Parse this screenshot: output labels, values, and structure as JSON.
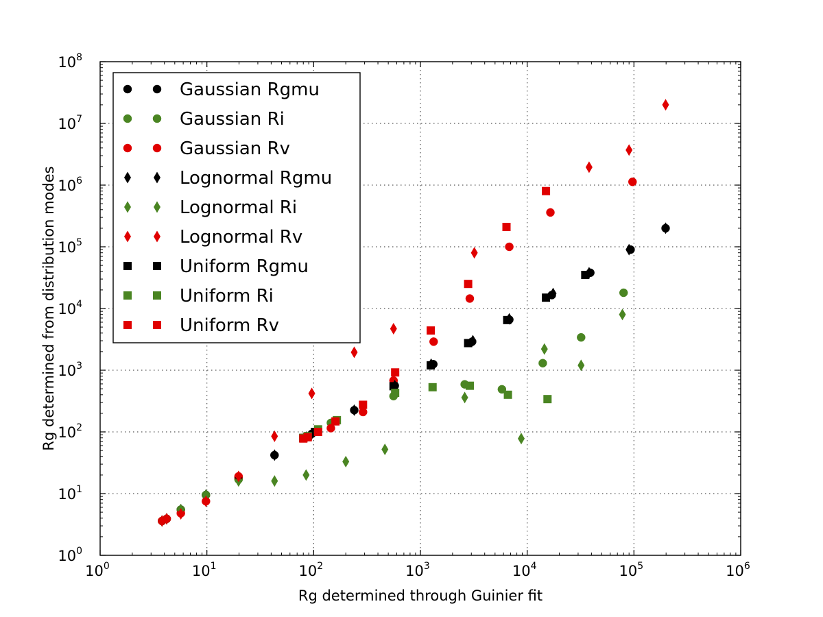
{
  "chart_data": {
    "type": "scatter",
    "xlabel": "Rg determined through Guinier fit",
    "ylabel": "Rg determined from distribution modes",
    "xscale": "log",
    "yscale": "log",
    "xlim": [
      1,
      1000000
    ],
    "ylim": [
      1,
      100000000
    ],
    "x_ticks": [
      {
        "value": 1,
        "base": "10",
        "exp": "0"
      },
      {
        "value": 10,
        "base": "10",
        "exp": "1"
      },
      {
        "value": 100,
        "base": "10",
        "exp": "2"
      },
      {
        "value": 1000,
        "base": "10",
        "exp": "3"
      },
      {
        "value": 10000,
        "base": "10",
        "exp": "4"
      },
      {
        "value": 100000,
        "base": "10",
        "exp": "5"
      },
      {
        "value": 1000000,
        "base": "10",
        "exp": "6"
      }
    ],
    "y_ticks": [
      {
        "value": 1,
        "base": "10",
        "exp": "0"
      },
      {
        "value": 10,
        "base": "10",
        "exp": "1"
      },
      {
        "value": 100,
        "base": "10",
        "exp": "2"
      },
      {
        "value": 1000,
        "base": "10",
        "exp": "3"
      },
      {
        "value": 10000,
        "base": "10",
        "exp": "4"
      },
      {
        "value": 100000,
        "base": "10",
        "exp": "5"
      },
      {
        "value": 1000000,
        "base": "10",
        "exp": "6"
      },
      {
        "value": 10000000,
        "base": "10",
        "exp": "7"
      },
      {
        "value": 100000000,
        "base": "10",
        "exp": "8"
      }
    ],
    "grid": true,
    "legend_position": "top-left",
    "series": [
      {
        "name": "Gaussian Rgmu",
        "marker": "circle",
        "color": "#000000",
        "points": [
          [
            3.8,
            3.6
          ],
          [
            4.2,
            3.9
          ],
          [
            5.7,
            5.5
          ],
          [
            9.8,
            9.5
          ],
          [
            19.8,
            18
          ],
          [
            43,
            42
          ],
          [
            96,
            93
          ],
          [
            240,
            225
          ],
          [
            575,
            560
          ],
          [
            1320,
            1250
          ],
          [
            3050,
            2900
          ],
          [
            6800,
            6600
          ],
          [
            17000,
            16500
          ],
          [
            39000,
            38000
          ],
          [
            93000,
            90000
          ],
          [
            198000,
            200000
          ]
        ]
      },
      {
        "name": "Gaussian Ri",
        "marker": "circle",
        "color": "#4a8522",
        "points": [
          [
            3.8,
            3.6
          ],
          [
            4.2,
            3.9
          ],
          [
            5.7,
            5.5
          ],
          [
            9.8,
            9.5
          ],
          [
            19.8,
            17
          ],
          [
            85,
            85
          ],
          [
            145,
            140
          ],
          [
            560,
            380
          ],
          [
            2600,
            590
          ],
          [
            5800,
            490
          ],
          [
            14000,
            1300
          ],
          [
            32000,
            3400
          ],
          [
            80000,
            18000
          ]
        ]
      },
      {
        "name": "Gaussian Rv",
        "marker": "circle",
        "color": "#e00000",
        "points": [
          [
            3.8,
            3.6
          ],
          [
            4.2,
            3.9
          ],
          [
            5.7,
            4.8
          ],
          [
            9.8,
            7.5
          ],
          [
            19.8,
            19
          ],
          [
            145,
            115
          ],
          [
            290,
            210
          ],
          [
            560,
            680
          ],
          [
            1330,
            2900
          ],
          [
            2900,
            14500
          ],
          [
            6800,
            100000
          ],
          [
            16500,
            360000
          ],
          [
            97000,
            1130000
          ]
        ]
      },
      {
        "name": "Lognormal Rgmu",
        "marker": "diamond",
        "color": "#000000",
        "points": [
          [
            3.8,
            3.6
          ],
          [
            4.2,
            3.9
          ],
          [
            5.7,
            5.5
          ],
          [
            9.8,
            9.5
          ],
          [
            19.8,
            18
          ],
          [
            43,
            42
          ],
          [
            96,
            93
          ],
          [
            240,
            225
          ],
          [
            575,
            560
          ],
          [
            1260,
            1250
          ],
          [
            3100,
            3000
          ],
          [
            6800,
            6800
          ],
          [
            17500,
            17500
          ],
          [
            38000,
            38000
          ],
          [
            90000,
            90000
          ],
          [
            198000,
            200000
          ]
        ]
      },
      {
        "name": "Lognormal Ri",
        "marker": "diamond",
        "color": "#4a8522",
        "points": [
          [
            3.8,
            3.6
          ],
          [
            4.2,
            3.9
          ],
          [
            5.7,
            5.5
          ],
          [
            9.8,
            9.5
          ],
          [
            19.8,
            16
          ],
          [
            43,
            16
          ],
          [
            85,
            20
          ],
          [
            200,
            33
          ],
          [
            465,
            52
          ],
          [
            2600,
            360
          ],
          [
            8800,
            78
          ],
          [
            14500,
            2200
          ],
          [
            32000,
            1200
          ],
          [
            78000,
            8000
          ]
        ]
      },
      {
        "name": "Lognormal Rv",
        "marker": "diamond",
        "color": "#e00000",
        "points": [
          [
            3.8,
            3.6
          ],
          [
            4.2,
            3.9
          ],
          [
            5.7,
            4.7
          ],
          [
            9.8,
            7.5
          ],
          [
            19.8,
            19
          ],
          [
            43,
            85
          ],
          [
            96,
            420
          ],
          [
            240,
            1950
          ],
          [
            560,
            4700
          ],
          [
            3200,
            80000
          ],
          [
            38000,
            1950000
          ],
          [
            90000,
            3700000
          ],
          [
            198000,
            20000000
          ]
        ]
      },
      {
        "name": "Uniform Rgmu",
        "marker": "square",
        "color": "#000000",
        "points": [
          [
            80,
            80
          ],
          [
            88,
            85
          ],
          [
            103,
            100
          ],
          [
            560,
            550
          ],
          [
            1250,
            1200
          ],
          [
            2800,
            2750
          ],
          [
            6500,
            6500
          ],
          [
            15000,
            15000
          ],
          [
            35000,
            35000
          ]
        ]
      },
      {
        "name": "Uniform Ri",
        "marker": "square",
        "color": "#4a8522",
        "points": [
          [
            80,
            80
          ],
          [
            88,
            85
          ],
          [
            110,
            110
          ],
          [
            165,
            155
          ],
          [
            580,
            430
          ],
          [
            1300,
            530
          ],
          [
            2900,
            560
          ],
          [
            6600,
            400
          ],
          [
            15500,
            340
          ]
        ]
      },
      {
        "name": "Uniform Rv",
        "marker": "square",
        "color": "#e00000",
        "points": [
          [
            80,
            78
          ],
          [
            88,
            82
          ],
          [
            110,
            100
          ],
          [
            160,
            148
          ],
          [
            290,
            275
          ],
          [
            580,
            920
          ],
          [
            1250,
            4400
          ],
          [
            2800,
            25000
          ],
          [
            6400,
            210000
          ],
          [
            15000,
            800000
          ]
        ]
      }
    ]
  }
}
